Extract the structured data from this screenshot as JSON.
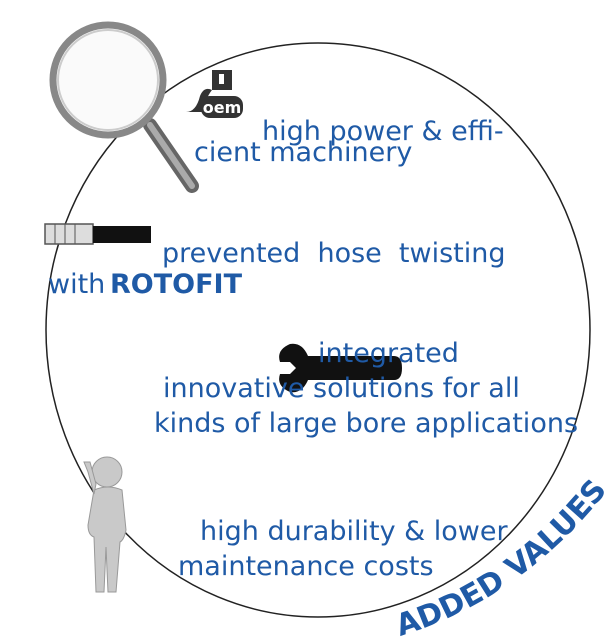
{
  "logo": "oem",
  "items": [
    {
      "lines": [
        "high power & effi-",
        "cient machinery"
      ]
    },
    {
      "lines": [
        "prevented  hose  twisting"
      ],
      "prefix": "with",
      "brand": "ROTOFIT"
    },
    {
      "lines": [
        "integrated",
        "innovative solutions for all",
        "kinds of large bore applications"
      ]
    },
    {
      "lines": [
        "high durability & lower",
        "maintenance costs"
      ]
    }
  ],
  "banner": "ADDED VALUES"
}
